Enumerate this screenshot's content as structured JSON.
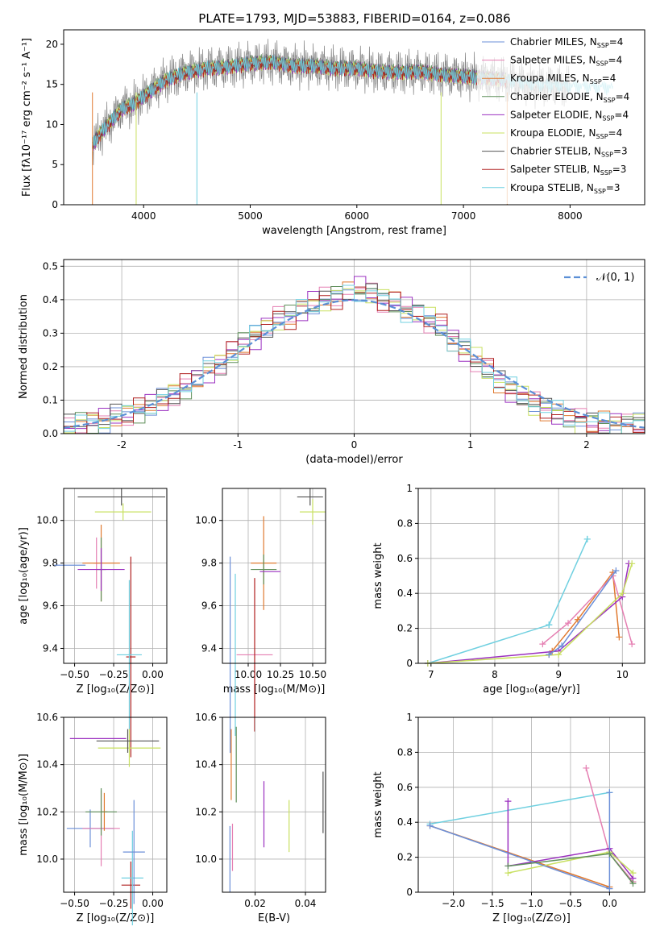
{
  "title": "PLATE=1793, MJD=53883, FIBERID=0164, z=0.086",
  "colors": {
    "Chabrier MILES": "#6b8fd8",
    "Salpeter MILES": "#e57fb2",
    "Kroupa MILES": "#e07a30",
    "Chabrier ELODIE": "#5f8f5a",
    "Salpeter ELODIE": "#9b30c0",
    "Kroupa ELODIE": "#c8e060",
    "Chabrier STELIB": "#555555",
    "Salpeter STELIB": "#b02020",
    "Kroupa STELIB": "#70d0e0",
    "data": "#808080"
  },
  "chart_data": [
    {
      "id": "spectrum",
      "type": "line",
      "xlabel": "wavelength [Angstrom, rest frame]",
      "ylabel": "Flux [fλ10⁻¹⁷ erg cm⁻² s⁻¹ A⁻¹]",
      "xlim": [
        3250,
        8700
      ],
      "ylim": [
        0,
        21.8
      ],
      "xticks": [
        4000,
        5000,
        6000,
        7000,
        8000
      ],
      "yticks": [
        0,
        5,
        10,
        15,
        20
      ],
      "legend_position": "right",
      "legend": [
        "Chabrier MILES, N_SSP=4",
        "Salpeter MILES, N_SSP=4",
        "Kroupa MILES, N_SSP=4",
        "Chabrier ELODIE, N_SSP=4",
        "Salpeter ELODIE, N_SSP=4",
        "Kroupa ELODIE, N_SSP=4",
        "Chabrier STELIB, N_SSP=3",
        "Salpeter STELIB, N_SSP=3",
        "Kroupa STELIB, N_SSP=3"
      ],
      "continuum": {
        "x": [
          3520,
          3600,
          3700,
          3800,
          3900,
          4000,
          4100,
          4200,
          4400,
          4600,
          4800,
          5000,
          5200,
          5400,
          5600,
          5800,
          6000,
          6200,
          6400,
          6600,
          6800,
          7000,
          7200,
          7400,
          7600,
          7800,
          8000,
          8200,
          8400
        ],
        "y": [
          7.5,
          9.0,
          10.5,
          12.0,
          12.5,
          13.5,
          14.5,
          15.5,
          16.5,
          17.0,
          17.2,
          17.6,
          17.8,
          17.3,
          17.3,
          17.0,
          17.0,
          16.6,
          16.5,
          16.6,
          16.2,
          16.0,
          15.8,
          15.6,
          15.1,
          14.9,
          14.8,
          14.7,
          14.6
        ]
      }
    },
    {
      "id": "residuals",
      "type": "line",
      "xlabel": "(data-model)/error",
      "ylabel": "Normed distribution",
      "xlim": [
        -2.5,
        2.5
      ],
      "ylim": [
        0,
        0.52
      ],
      "xticks": [
        -2,
        -1,
        0,
        1,
        2
      ],
      "yticks": [
        0.0,
        0.1,
        0.2,
        0.3,
        0.4,
        0.5
      ],
      "grid": true,
      "legend_position": "top-right",
      "legend": [
        "𝒩(0, 1)"
      ],
      "hist_values": [
        0.02,
        0.03,
        0.035,
        0.04,
        0.05,
        0.06,
        0.07,
        0.085,
        0.1,
        0.12,
        0.14,
        0.165,
        0.19,
        0.21,
        0.24,
        0.27,
        0.29,
        0.32,
        0.34,
        0.35,
        0.37,
        0.39,
        0.4,
        0.41,
        0.42,
        0.43,
        0.42,
        0.4,
        0.39,
        0.37,
        0.36,
        0.34,
        0.32,
        0.28,
        0.25,
        0.22,
        0.19,
        0.16,
        0.13,
        0.11,
        0.09,
        0.075,
        0.06,
        0.05,
        0.04,
        0.035,
        0.03,
        0.03,
        0.03,
        0.03
      ]
    },
    {
      "id": "age_vs_Z",
      "type": "scatter",
      "xlabel": "Z [log₁₀(Z/Z⊙)]",
      "ylabel": "age  [log₁₀(age/yr)]",
      "xlim": [
        -0.57,
        0.09
      ],
      "ylim": [
        9.33,
        10.15
      ],
      "xticks": [
        -0.5,
        -0.25,
        0.0
      ],
      "xticklabels": [
        "−0.50",
        "−0.25",
        "0.00"
      ],
      "yticks": [
        9.4,
        9.6,
        9.8,
        10.0
      ],
      "grid": true,
      "points": [
        {
          "x": -0.53,
          "y": 9.79,
          "xerr": 0.1,
          "yerr": 0.0
        },
        {
          "x": -0.36,
          "y": 9.8,
          "xerr": 0.02,
          "yerr": 0.12
        },
        {
          "x": -0.33,
          "y": 9.8,
          "xerr": 0.12,
          "yerr": 0.18
        },
        {
          "x": -0.33,
          "y": 9.77,
          "xerr": 0.03,
          "yerr": 0.15
        },
        {
          "x": -0.33,
          "y": 9.77,
          "xerr": 0.15,
          "yerr": 0.1
        },
        {
          "x": -0.19,
          "y": 10.04,
          "xerr": 0.18,
          "yerr": 0.04
        },
        {
          "x": -0.2,
          "y": 10.11,
          "xerr": 0.28,
          "yerr": 0.04
        },
        {
          "x": -0.14,
          "y": 9.36,
          "xerr": 0.03,
          "yerr": 0.47
        },
        {
          "x": -0.15,
          "y": 9.37,
          "xerr": 0.08,
          "yerr": 0.35
        }
      ]
    },
    {
      "id": "age_vs_mass",
      "type": "scatter",
      "xlabel": "mass [log₁₀(M/M⊙)]",
      "ylabel": "",
      "xlim": [
        9.8,
        10.6
      ],
      "ylim": [
        9.33,
        10.15
      ],
      "xticks": [
        10.0,
        10.25,
        10.5
      ],
      "xticklabels": [
        "10.00",
        "10.25",
        "10.50"
      ],
      "yticks": [
        9.4,
        9.6,
        9.8,
        10.0
      ],
      "grid": true,
      "points": [
        {
          "x": 9.86,
          "y": 9.37,
          "xerr": 0.0,
          "yerr": 0.46
        },
        {
          "x": 10.05,
          "y": 9.37,
          "xerr": 0.14,
          "yerr": 0.0
        },
        {
          "x": 10.12,
          "y": 9.8,
          "xerr": 0.1,
          "yerr": 0.22
        },
        {
          "x": 10.12,
          "y": 9.77,
          "xerr": 0.1,
          "yerr": 0.07
        },
        {
          "x": 10.17,
          "y": 9.76,
          "xerr": 0.08,
          "yerr": 0.0
        },
        {
          "x": 10.5,
          "y": 10.04,
          "xerr": 0.1,
          "yerr": 0.06
        },
        {
          "x": 10.48,
          "y": 10.11,
          "xerr": 0.1,
          "yerr": 0.04
        },
        {
          "x": 10.05,
          "y": 9.37,
          "xerr": 0.0,
          "yerr": 0.36
        },
        {
          "x": 9.9,
          "y": 9.37,
          "xerr": 0.0,
          "yerr": 0.38
        }
      ]
    },
    {
      "id": "mass_weight_vs_age",
      "type": "line",
      "xlabel": "age  [log₁₀(age/yr)]",
      "ylabel": "mass weight",
      "xlim": [
        6.8,
        10.35
      ],
      "ylim": [
        0,
        1.0
      ],
      "xticks": [
        7,
        8,
        9,
        10
      ],
      "yticks": [
        0.0,
        0.2,
        0.4,
        0.6,
        0.8,
        1.0
      ],
      "grid": true,
      "series": [
        {
          "x": [
            6.95,
            8.85,
            9.45,
            8.85,
            9.45
          ],
          "y": [
            0.0,
            0.22,
            0.71,
            0.22,
            0.71
          ]
        },
        {
          "x": [
            8.85,
            8.9,
            9.3,
            9.85,
            9.95
          ],
          "y": [
            0.05,
            0.07,
            0.25,
            0.52,
            0.15
          ]
        },
        {
          "x": [
            8.75,
            9.15,
            9.85,
            10.15
          ],
          "y": [
            0.11,
            0.23,
            0.5,
            0.11
          ]
        },
        {
          "x": [
            6.95,
            9.0,
            10.0,
            10.1
          ],
          "y": [
            0.0,
            0.07,
            0.38,
            0.57
          ]
        },
        {
          "x": [
            6.95,
            9.0,
            10.0,
            10.15
          ],
          "y": [
            0.0,
            0.05,
            0.4,
            0.57
          ]
        },
        {
          "x": [
            8.85,
            9.05,
            9.9
          ],
          "y": [
            0.05,
            0.1,
            0.53
          ]
        }
      ]
    },
    {
      "id": "mass_vs_Z",
      "type": "scatter",
      "xlabel": "Z [log₁₀(Z/Z⊙)]",
      "ylabel": "mass [log₁₀(M/M⊙)]",
      "xlim": [
        -0.57,
        0.09
      ],
      "ylim": [
        9.86,
        10.6
      ],
      "xticks": [
        -0.5,
        -0.25,
        0.0
      ],
      "xticklabels": [
        "−0.50",
        "−0.25",
        "0.00"
      ],
      "yticks": [
        10.0,
        10.2,
        10.4,
        10.6
      ],
      "grid": true,
      "points": [
        {
          "x": -0.4,
          "y": 10.13,
          "xerr": 0.15,
          "yerr": 0.08
        },
        {
          "x": -0.33,
          "y": 10.13,
          "xerr": 0.12,
          "yerr": 0.16
        },
        {
          "x": -0.31,
          "y": 10.2,
          "xerr": 0.02,
          "yerr": 0.08
        },
        {
          "x": -0.33,
          "y": 10.2,
          "xerr": 0.1,
          "yerr": 0.1
        },
        {
          "x": -0.35,
          "y": 10.51,
          "xerr": 0.18,
          "yerr": 0.0
        },
        {
          "x": -0.15,
          "y": 10.47,
          "xerr": 0.2,
          "yerr": 0.08
        },
        {
          "x": -0.16,
          "y": 10.5,
          "xerr": 0.2,
          "yerr": 0.05
        },
        {
          "x": -0.14,
          "y": 9.89,
          "xerr": 0.06,
          "yerr": 0.1
        },
        {
          "x": -0.13,
          "y": 9.92,
          "xerr": 0.07,
          "yerr": 0.2
        },
        {
          "x": -0.12,
          "y": 10.03,
          "xerr": 0.07,
          "yerr": 0.22
        }
      ]
    },
    {
      "id": "mass_vs_ebv",
      "type": "scatter",
      "xlabel": "E(B-V)",
      "ylabel": "",
      "xlim": [
        0.007,
        0.048
      ],
      "ylim": [
        9.86,
        10.6
      ],
      "xticks": [
        0.02,
        0.04
      ],
      "xticklabels": [
        "0.02",
        "0.04"
      ],
      "yticks": [
        10.0,
        10.2,
        10.4,
        10.6
      ],
      "grid": true,
      "points": [
        {
          "x": 0.01,
          "y": 10.0,
          "xerr": 0.0,
          "yerr": 0.14
        },
        {
          "x": 0.011,
          "y": 10.05,
          "xerr": 0.0,
          "yerr": 0.1
        },
        {
          "x": 0.0105,
          "y": 10.4,
          "xerr": 0.0,
          "yerr": 0.15
        },
        {
          "x": 0.0125,
          "y": 10.4,
          "xerr": 0.0,
          "yerr": 0.16
        },
        {
          "x": 0.0235,
          "y": 10.19,
          "xerr": 0.0,
          "yerr": 0.14
        },
        {
          "x": 0.0335,
          "y": 10.14,
          "xerr": 0.0,
          "yerr": 0.11
        },
        {
          "x": 0.047,
          "y": 10.24,
          "xerr": 0.0,
          "yerr": 0.13
        }
      ]
    },
    {
      "id": "mass_weight_vs_Z",
      "type": "line",
      "xlabel": "Z [log₁₀(Z/Z⊙)]",
      "ylabel": "mass weight",
      "xlim": [
        -2.45,
        0.45
      ],
      "ylim": [
        0,
        1.0
      ],
      "xticks": [
        -2.0,
        -1.5,
        -1.0,
        -0.5,
        0.0
      ],
      "xticklabels": [
        "−2.0",
        "−1.5",
        "−1.0",
        "−0.5",
        "0.0"
      ],
      "yticks": [
        0.0,
        0.2,
        0.4,
        0.6,
        0.8,
        1.0
      ],
      "grid": true,
      "series": [
        {
          "x": [
            -2.3,
            0.0
          ],
          "y": [
            0.39,
            0.57
          ]
        },
        {
          "x": [
            -2.3,
            0.0
          ],
          "y": [
            0.38,
            0.03
          ]
        },
        {
          "x": [
            -0.3,
            0.0,
            0.3
          ],
          "y": [
            0.71,
            0.22,
            0.06
          ]
        },
        {
          "x": [
            -1.3,
            -1.3,
            0.0,
            0.3
          ],
          "y": [
            0.52,
            0.15,
            0.25,
            0.08
          ]
        },
        {
          "x": [
            -1.3,
            0.0,
            0.3
          ],
          "y": [
            0.11,
            0.23,
            0.11
          ]
        },
        {
          "x": [
            -2.3,
            0.0,
            0.0
          ],
          "y": [
            0.38,
            0.02,
            0.57
          ]
        },
        {
          "x": [
            -1.3,
            0.0,
            0.3
          ],
          "y": [
            0.15,
            0.22,
            0.05
          ]
        }
      ]
    }
  ]
}
